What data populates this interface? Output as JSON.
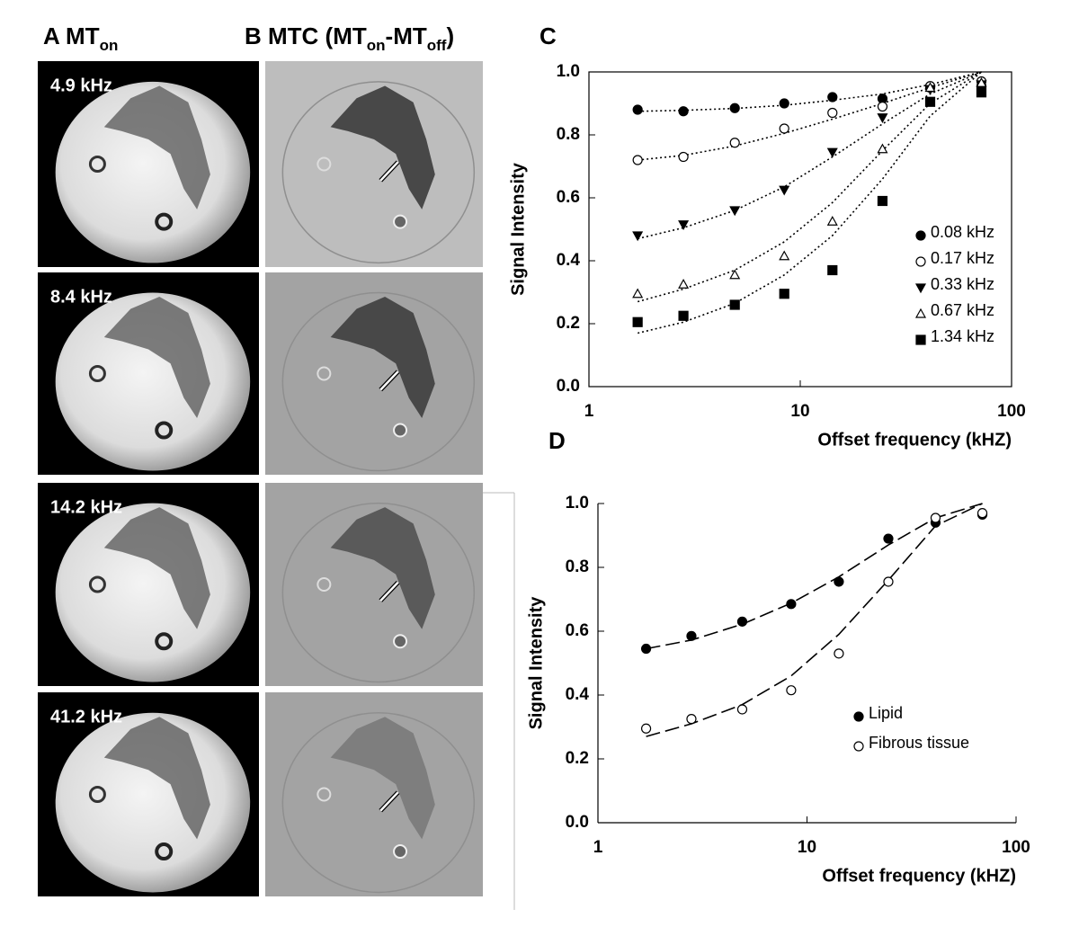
{
  "panels": {
    "A": {
      "letter": "A",
      "parts": [
        {
          "text": "MT"
        },
        {
          "text": "on",
          "sub": true
        }
      ]
    },
    "B": {
      "letter": "B",
      "parts": [
        {
          "text": "MTC (MT"
        },
        {
          "text": "on",
          "sub": true
        },
        {
          "text": "-MT"
        },
        {
          "text": "off",
          "sub": true
        },
        {
          "text": ")"
        }
      ]
    }
  },
  "image_labels": [
    "4.9 kHz",
    "8.4 kHz",
    "14.2 kHz",
    "41.2 kHz"
  ],
  "chart_data": [
    {
      "type": "scatter",
      "title": "C",
      "xlabel": "Offset frequency (kHZ)",
      "ylabel": "Signal Intensity",
      "x": [
        1.7,
        2.8,
        4.9,
        8.4,
        14.2,
        24.5,
        41.2,
        72
      ],
      "xscale": "log",
      "xlim": [
        1,
        100
      ],
      "xticks": [
        1,
        10,
        100
      ],
      "ylim": [
        0,
        1
      ],
      "yticks": [
        {
          "value": 0,
          "label": "0.0"
        },
        {
          "value": 0.2,
          "label": "0.2"
        },
        {
          "value": 0.4,
          "label": "0.4"
        },
        {
          "value": 0.6,
          "label": "0.6"
        },
        {
          "value": 0.8,
          "label": "0.8"
        },
        {
          "value": 1,
          "label": "1.0"
        }
      ],
      "frame": "box",
      "fit_style": "dotted",
      "legend": "lower right",
      "series": [
        {
          "name": "0.08 kHz",
          "color": "#000000",
          "marker": "circle",
          "filled": true,
          "values": [
            0.88,
            0.875,
            0.885,
            0.9,
            0.92,
            0.915,
            0.95,
            0.955
          ],
          "fit": [
            0.875,
            0.878,
            0.884,
            0.894,
            0.91,
            0.93,
            0.96,
            1.0
          ]
        },
        {
          "name": "0.17 kHz",
          "color": "#000000",
          "marker": "circle",
          "filled": false,
          "values": [
            0.72,
            0.73,
            0.775,
            0.82,
            0.87,
            0.89,
            0.955,
            0.97
          ],
          "fit": [
            0.72,
            0.735,
            0.765,
            0.805,
            0.85,
            0.9,
            0.95,
            1.0
          ]
        },
        {
          "name": "0.33 kHz",
          "color": "#000000",
          "marker": "triangle-down",
          "filled": true,
          "values": [
            0.48,
            0.515,
            0.56,
            0.625,
            0.745,
            0.855,
            0.945,
            0.96
          ],
          "fit": [
            0.47,
            0.505,
            0.56,
            0.635,
            0.73,
            0.835,
            0.93,
            1.0
          ]
        },
        {
          "name": "0.67 kHz",
          "color": "#000000",
          "marker": "triangle-up",
          "filled": false,
          "values": [
            0.295,
            0.325,
            0.355,
            0.415,
            0.525,
            0.755,
            0.95,
            0.965
          ],
          "fit": [
            0.27,
            0.31,
            0.37,
            0.46,
            0.585,
            0.75,
            0.9,
            1.0
          ]
        },
        {
          "name": "1.34 kHz",
          "color": "#000000",
          "marker": "square",
          "filled": true,
          "values": [
            0.205,
            0.225,
            0.26,
            0.295,
            0.37,
            0.59,
            0.905,
            0.935
          ],
          "fit": [
            0.17,
            0.205,
            0.265,
            0.355,
            0.48,
            0.66,
            0.86,
            1.0
          ]
        }
      ]
    },
    {
      "type": "scatter",
      "title": "D",
      "xlabel": "Offset frequency (kHZ)",
      "ylabel": "Signal Intensity",
      "x": [
        1.7,
        2.8,
        4.9,
        8.4,
        14.2,
        24.5,
        41.2,
        69
      ],
      "xscale": "log",
      "xlim": [
        1,
        100
      ],
      "xticks": [
        1,
        10,
        100
      ],
      "ylim": [
        0,
        1
      ],
      "yticks": [
        {
          "value": 0,
          "label": "0.0"
        },
        {
          "value": 0.2,
          "label": "0.2"
        },
        {
          "value": 0.4,
          "label": "0.4"
        },
        {
          "value": 0.6,
          "label": "0.6"
        },
        {
          "value": 0.8,
          "label": "0.8"
        },
        {
          "value": 1,
          "label": "1.0"
        }
      ],
      "frame": "axes",
      "fit_style": "dashed",
      "legend": "lower right",
      "series": [
        {
          "name": "Lipid",
          "color": "#000000",
          "marker": "circle",
          "filled": true,
          "values": [
            0.545,
            0.585,
            0.63,
            0.685,
            0.755,
            0.89,
            0.94,
            0.965
          ],
          "fit": [
            0.545,
            0.572,
            0.622,
            0.688,
            0.77,
            0.87,
            0.955,
            1.0
          ]
        },
        {
          "name": "Fibrous tissue",
          "color": "#000000",
          "marker": "circle",
          "filled": false,
          "values": [
            0.295,
            0.325,
            0.355,
            0.415,
            0.53,
            0.755,
            0.955,
            0.97
          ],
          "fit": [
            0.27,
            0.31,
            0.37,
            0.46,
            0.59,
            0.76,
            0.93,
            1.0
          ]
        }
      ]
    }
  ]
}
